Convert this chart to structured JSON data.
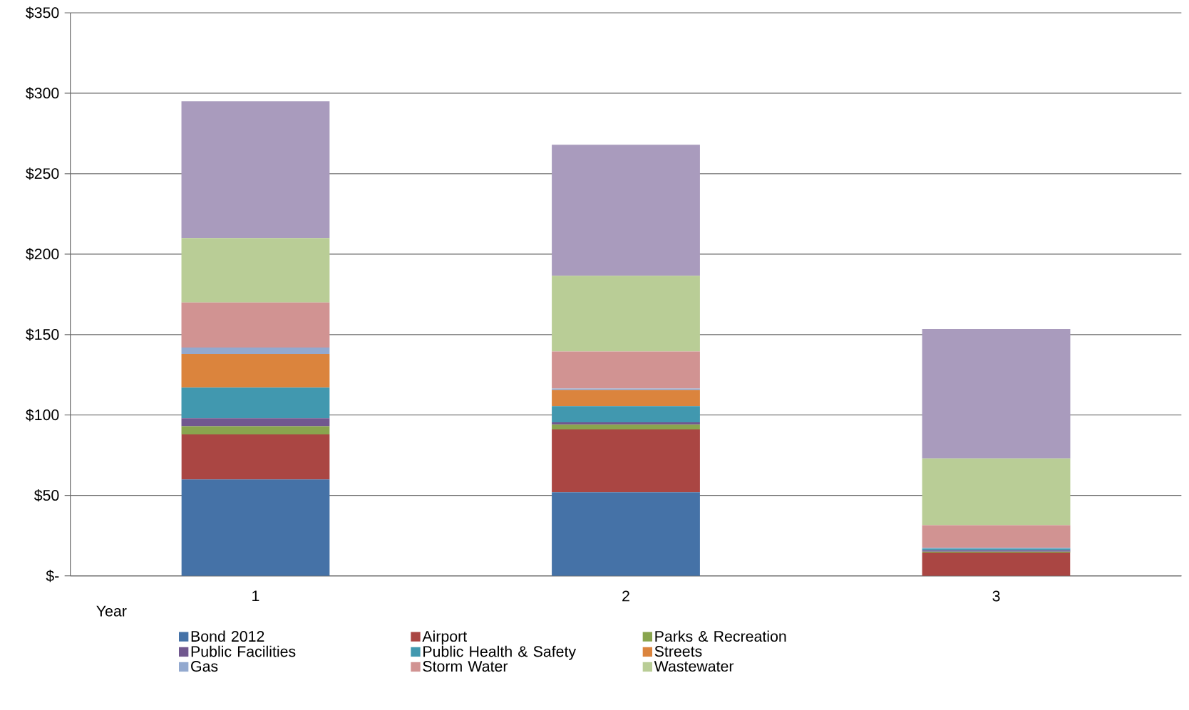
{
  "chart_data": {
    "type": "bar",
    "stacked": true,
    "xlabel": "Year",
    "categories": [
      "1",
      "2",
      "3"
    ],
    "series": [
      {
        "name": "Bond 2012",
        "color": "#4572a7",
        "values": [
          60,
          52,
          0
        ]
      },
      {
        "name": "Airport",
        "color": "#aa4643",
        "values": [
          28,
          39,
          14.5
        ]
      },
      {
        "name": "Parks & Recreation",
        "color": "#89a54e",
        "values": [
          5,
          3,
          0.5
        ]
      },
      {
        "name": "Public Facilities",
        "color": "#71588f",
        "values": [
          5,
          1.5,
          1
        ]
      },
      {
        "name": "Public Health & Safety",
        "color": "#4198af",
        "values": [
          19,
          10,
          1
        ]
      },
      {
        "name": "Streets",
        "color": "#db843d",
        "values": [
          21,
          10,
          0
        ]
      },
      {
        "name": "Gas",
        "color": "#93a9cf",
        "values": [
          4,
          1,
          0.5
        ]
      },
      {
        "name": "Storm Water",
        "color": "#d19392",
        "values": [
          28,
          23,
          14
        ]
      },
      {
        "name": "Wastewater",
        "color": "#b9cd96",
        "values": [
          40,
          47,
          41.5
        ]
      },
      {
        "color": "#a99bbd",
        "values": [
          85,
          81.5,
          80.5
        ]
      }
    ],
    "ylim": [
      0,
      350
    ],
    "yticks": [
      {
        "value": 0,
        "label": "$-"
      },
      {
        "value": 50,
        "label": "$50"
      },
      {
        "value": 100,
        "label": "$100"
      },
      {
        "value": 150,
        "label": "$150"
      },
      {
        "value": 200,
        "label": "$200"
      },
      {
        "value": 250,
        "label": "$250"
      },
      {
        "value": 300,
        "label": "$300"
      },
      {
        "value": 350,
        "label": "$350"
      }
    ],
    "grid": "y",
    "legend": "bottom"
  }
}
